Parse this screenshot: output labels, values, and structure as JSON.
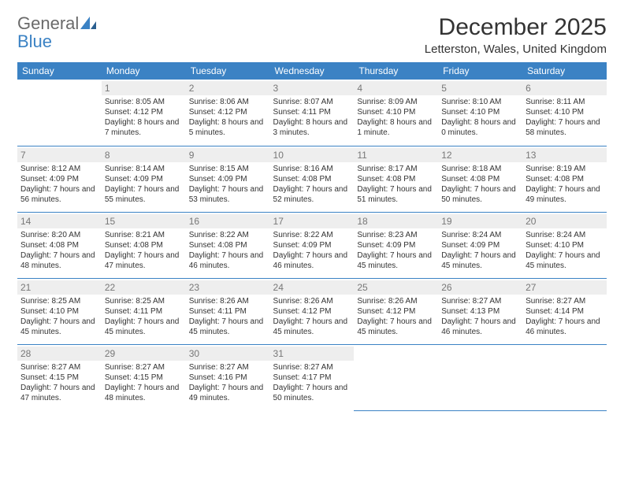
{
  "logo": {
    "text1": "General",
    "text2": "Blue"
  },
  "brand_color": "#3b82c4",
  "month_title": "December 2025",
  "location": "Letterston, Wales, United Kingdom",
  "day_headers": [
    "Sunday",
    "Monday",
    "Tuesday",
    "Wednesday",
    "Thursday",
    "Friday",
    "Saturday"
  ],
  "header_bg": "#3b82c4",
  "header_fg": "#ffffff",
  "daynum_bg": "#eeeeee",
  "daynum_fg": "#777777",
  "cell_border": "#3b82c4",
  "weeks": [
    [
      null,
      {
        "d": "1",
        "sr": "Sunrise: 8:05 AM",
        "ss": "Sunset: 4:12 PM",
        "dl": "Daylight: 8 hours and 7 minutes."
      },
      {
        "d": "2",
        "sr": "Sunrise: 8:06 AM",
        "ss": "Sunset: 4:12 PM",
        "dl": "Daylight: 8 hours and 5 minutes."
      },
      {
        "d": "3",
        "sr": "Sunrise: 8:07 AM",
        "ss": "Sunset: 4:11 PM",
        "dl": "Daylight: 8 hours and 3 minutes."
      },
      {
        "d": "4",
        "sr": "Sunrise: 8:09 AM",
        "ss": "Sunset: 4:10 PM",
        "dl": "Daylight: 8 hours and 1 minute."
      },
      {
        "d": "5",
        "sr": "Sunrise: 8:10 AM",
        "ss": "Sunset: 4:10 PM",
        "dl": "Daylight: 8 hours and 0 minutes."
      },
      {
        "d": "6",
        "sr": "Sunrise: 8:11 AM",
        "ss": "Sunset: 4:10 PM",
        "dl": "Daylight: 7 hours and 58 minutes."
      }
    ],
    [
      {
        "d": "7",
        "sr": "Sunrise: 8:12 AM",
        "ss": "Sunset: 4:09 PM",
        "dl": "Daylight: 7 hours and 56 minutes."
      },
      {
        "d": "8",
        "sr": "Sunrise: 8:14 AM",
        "ss": "Sunset: 4:09 PM",
        "dl": "Daylight: 7 hours and 55 minutes."
      },
      {
        "d": "9",
        "sr": "Sunrise: 8:15 AM",
        "ss": "Sunset: 4:09 PM",
        "dl": "Daylight: 7 hours and 53 minutes."
      },
      {
        "d": "10",
        "sr": "Sunrise: 8:16 AM",
        "ss": "Sunset: 4:08 PM",
        "dl": "Daylight: 7 hours and 52 minutes."
      },
      {
        "d": "11",
        "sr": "Sunrise: 8:17 AM",
        "ss": "Sunset: 4:08 PM",
        "dl": "Daylight: 7 hours and 51 minutes."
      },
      {
        "d": "12",
        "sr": "Sunrise: 8:18 AM",
        "ss": "Sunset: 4:08 PM",
        "dl": "Daylight: 7 hours and 50 minutes."
      },
      {
        "d": "13",
        "sr": "Sunrise: 8:19 AM",
        "ss": "Sunset: 4:08 PM",
        "dl": "Daylight: 7 hours and 49 minutes."
      }
    ],
    [
      {
        "d": "14",
        "sr": "Sunrise: 8:20 AM",
        "ss": "Sunset: 4:08 PM",
        "dl": "Daylight: 7 hours and 48 minutes."
      },
      {
        "d": "15",
        "sr": "Sunrise: 8:21 AM",
        "ss": "Sunset: 4:08 PM",
        "dl": "Daylight: 7 hours and 47 minutes."
      },
      {
        "d": "16",
        "sr": "Sunrise: 8:22 AM",
        "ss": "Sunset: 4:08 PM",
        "dl": "Daylight: 7 hours and 46 minutes."
      },
      {
        "d": "17",
        "sr": "Sunrise: 8:22 AM",
        "ss": "Sunset: 4:09 PM",
        "dl": "Daylight: 7 hours and 46 minutes."
      },
      {
        "d": "18",
        "sr": "Sunrise: 8:23 AM",
        "ss": "Sunset: 4:09 PM",
        "dl": "Daylight: 7 hours and 45 minutes."
      },
      {
        "d": "19",
        "sr": "Sunrise: 8:24 AM",
        "ss": "Sunset: 4:09 PM",
        "dl": "Daylight: 7 hours and 45 minutes."
      },
      {
        "d": "20",
        "sr": "Sunrise: 8:24 AM",
        "ss": "Sunset: 4:10 PM",
        "dl": "Daylight: 7 hours and 45 minutes."
      }
    ],
    [
      {
        "d": "21",
        "sr": "Sunrise: 8:25 AM",
        "ss": "Sunset: 4:10 PM",
        "dl": "Daylight: 7 hours and 45 minutes."
      },
      {
        "d": "22",
        "sr": "Sunrise: 8:25 AM",
        "ss": "Sunset: 4:11 PM",
        "dl": "Daylight: 7 hours and 45 minutes."
      },
      {
        "d": "23",
        "sr": "Sunrise: 8:26 AM",
        "ss": "Sunset: 4:11 PM",
        "dl": "Daylight: 7 hours and 45 minutes."
      },
      {
        "d": "24",
        "sr": "Sunrise: 8:26 AM",
        "ss": "Sunset: 4:12 PM",
        "dl": "Daylight: 7 hours and 45 minutes."
      },
      {
        "d": "25",
        "sr": "Sunrise: 8:26 AM",
        "ss": "Sunset: 4:12 PM",
        "dl": "Daylight: 7 hours and 45 minutes."
      },
      {
        "d": "26",
        "sr": "Sunrise: 8:27 AM",
        "ss": "Sunset: 4:13 PM",
        "dl": "Daylight: 7 hours and 46 minutes."
      },
      {
        "d": "27",
        "sr": "Sunrise: 8:27 AM",
        "ss": "Sunset: 4:14 PM",
        "dl": "Daylight: 7 hours and 46 minutes."
      }
    ],
    [
      {
        "d": "28",
        "sr": "Sunrise: 8:27 AM",
        "ss": "Sunset: 4:15 PM",
        "dl": "Daylight: 7 hours and 47 minutes."
      },
      {
        "d": "29",
        "sr": "Sunrise: 8:27 AM",
        "ss": "Sunset: 4:15 PM",
        "dl": "Daylight: 7 hours and 48 minutes."
      },
      {
        "d": "30",
        "sr": "Sunrise: 8:27 AM",
        "ss": "Sunset: 4:16 PM",
        "dl": "Daylight: 7 hours and 49 minutes."
      },
      {
        "d": "31",
        "sr": "Sunrise: 8:27 AM",
        "ss": "Sunset: 4:17 PM",
        "dl": "Daylight: 7 hours and 50 minutes."
      },
      null,
      null,
      null
    ]
  ]
}
